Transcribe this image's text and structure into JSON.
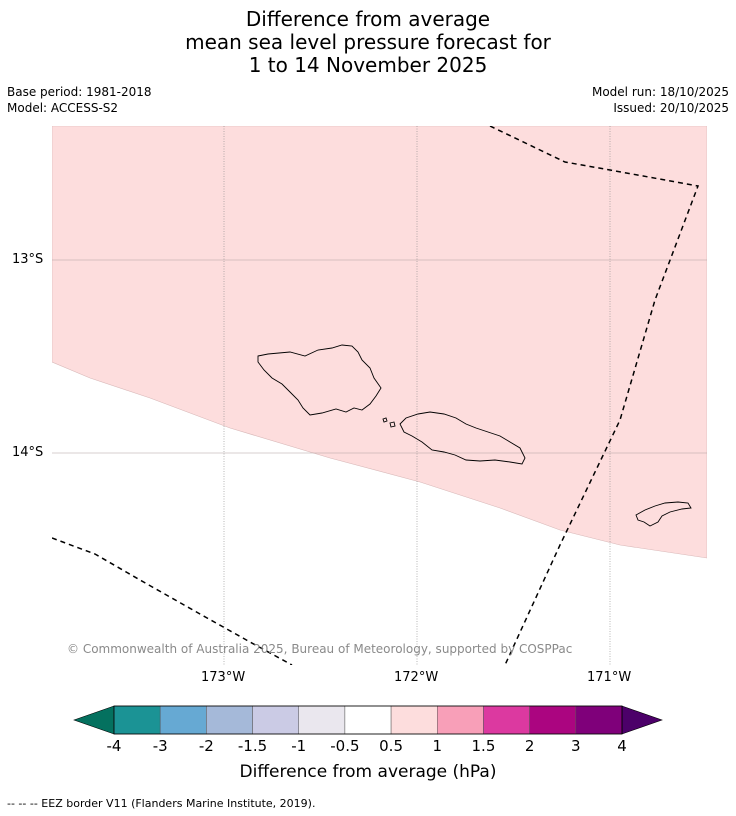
{
  "title": {
    "line1": "Difference from average",
    "line2": "mean sea level pressure forecast for",
    "line3": "1 to 14 November 2025"
  },
  "meta": {
    "base_period": "Base period: 1981-2018",
    "model": "Model: ACCESS-S2",
    "model_run": "Model run: 18/10/2025",
    "issued": "Issued: 20/10/2025"
  },
  "axes": {
    "lat_labels": [
      "13°S",
      "14°S"
    ],
    "lon_labels": [
      "173°W",
      "172°W",
      "171°W"
    ]
  },
  "copyright": "© Commonwealth of Australia 2025, Bureau of Meteorology, supported by COSPPac",
  "colorbar": {
    "title": "Difference from average (hPa)",
    "ticks": [
      "-4",
      "-3",
      "-2",
      "-1.5",
      "-1",
      "-0.5",
      "0.5",
      "1",
      "1.5",
      "2",
      "3",
      "4"
    ],
    "colors": [
      "#04715f",
      "#1b9395",
      "#66a9d3",
      "#a5b9d9",
      "#cbcbe5",
      "#eae7ee",
      "#ffffff",
      "#fddddd",
      "#f89fb8",
      "#dc39a0",
      "#ab0580",
      "#7f007a",
      "#4c0069"
    ]
  },
  "map_colors": {
    "positive_fill": "#fddddd",
    "grid": "#888888",
    "coast": "#000000"
  },
  "footer": "--  --  -- EEZ border V11 (Flanders Marine Institute, 2019)."
}
